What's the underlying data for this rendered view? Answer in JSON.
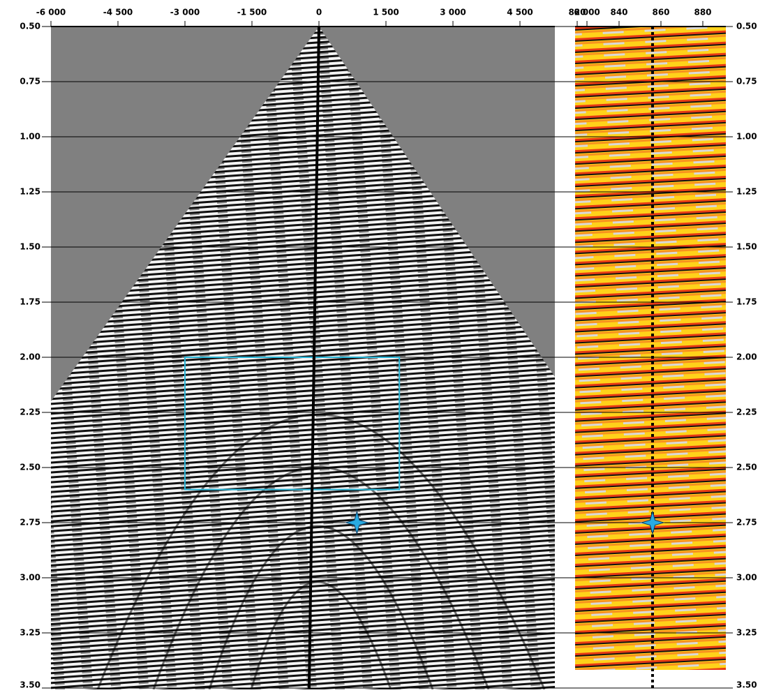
{
  "chart_data": [
    {
      "type": "seismic",
      "xlim": [
        -6000,
        6000
      ],
      "xticks": [
        {
          "value": -6000,
          "label": "-6 000"
        },
        {
          "value": -4500,
          "label": "-4 500"
        },
        {
          "value": -3000,
          "label": "-3 000"
        },
        {
          "value": -1500,
          "label": "-1 500"
        },
        0,
        {
          "value": 1500,
          "label": "1 500"
        },
        {
          "value": 3000,
          "label": "3 000"
        },
        {
          "value": 4500,
          "label": "4 500"
        },
        {
          "value": 6000,
          "label": "6 000"
        }
      ],
      "ylim": [
        0.5,
        3.5
      ],
      "yticks": [
        {
          "value": 0.5,
          "label": "0.50"
        },
        {
          "value": 0.75,
          "label": "0.75"
        },
        {
          "value": 1.0,
          "label": "1.00"
        },
        {
          "value": 1.25,
          "label": "1.25"
        },
        {
          "value": 1.5,
          "label": "1.50"
        },
        {
          "value": 1.75,
          "label": "1.75"
        },
        {
          "value": 2.0,
          "label": "2.00"
        },
        {
          "value": 2.25,
          "label": "2.25"
        },
        {
          "value": 2.5,
          "label": "2.50"
        },
        {
          "value": 2.75,
          "label": "2.75"
        },
        {
          "value": 3.0,
          "label": "3.00"
        },
        {
          "value": 3.25,
          "label": "3.25"
        },
        {
          "value": 3.5,
          "label": "3.50"
        }
      ],
      "grid": true,
      "well": {
        "x": [
          0,
          -220
        ],
        "y": [
          0.5,
          3.5
        ]
      },
      "box": {
        "x": [
          -3000,
          1800
        ],
        "y": [
          2.0,
          2.6
        ],
        "color": "#29b5d6"
      },
      "markers": [
        {
          "x": 850,
          "y": 2.75,
          "color": "#29abe2"
        }
      ]
    },
    {
      "type": "seismic",
      "xlim": [
        819,
        891
      ],
      "xticks": [
        820,
        840,
        860,
        880
      ],
      "ylim": [
        0.5,
        3.5
      ],
      "yticks": [
        {
          "value": 0.5,
          "label": "0.50"
        },
        {
          "value": 0.75,
          "label": "0.75"
        },
        {
          "value": 1.0,
          "label": "1.00"
        },
        {
          "value": 1.25,
          "label": "1.25"
        },
        {
          "value": 1.5,
          "label": "1.50"
        },
        {
          "value": 1.75,
          "label": "1.75"
        },
        {
          "value": 2.0,
          "label": "2.00"
        },
        {
          "value": 2.25,
          "label": "2.25"
        },
        {
          "value": 2.5,
          "label": "2.50"
        },
        {
          "value": 2.75,
          "label": "2.75"
        },
        {
          "value": 3.0,
          "label": "3.00"
        },
        {
          "value": 3.25,
          "label": "3.25"
        },
        {
          "value": 3.5,
          "label": "3.50"
        }
      ],
      "grid": true,
      "well": {
        "x": [
          856,
          856
        ],
        "y": [
          0.5,
          3.5
        ]
      },
      "markers": [
        {
          "x": 856,
          "y": 2.75,
          "color": "#29abe2"
        }
      ]
    }
  ]
}
